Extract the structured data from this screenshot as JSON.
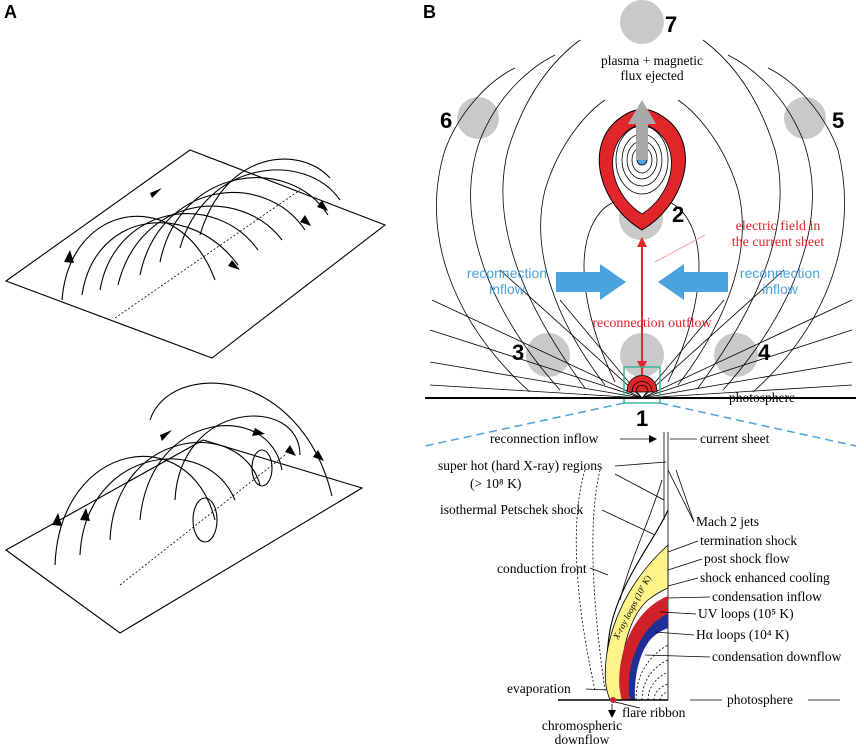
{
  "panels": {
    "a": "A",
    "b": "B"
  },
  "locations": [
    "1",
    "2",
    "3",
    "4",
    "5",
    "6",
    "7"
  ],
  "labels": {
    "plasma_line1": "plasma + magnetic",
    "plasma_line2": "flux ejected",
    "electric_line1": "electric field  in",
    "electric_line2": "the current sheet",
    "inflow_left_1": "reconnection",
    "inflow_left_2": "inflow",
    "inflow_right_1": "reconnection",
    "inflow_right_2": "inflow",
    "outflow": "reconnection outflow",
    "photosphere_top": "photosphere",
    "reconnection_inflow": "reconnection inflow",
    "current_sheet": "current sheet",
    "super_hot_1": "super hot (hard X-ray) regions",
    "super_hot_2": "(> 10⁸ K)",
    "petschek": "isothermal Petschek shock",
    "mach": "Mach 2 jets",
    "termination": "termination shock",
    "post_shock": "post shock flow",
    "conduction": "conduction front",
    "enhanced_cooling": "shock enhanced cooling",
    "condensation_inflow": "condensation inflow",
    "uv_loops": "UV loops (10⁵ K)",
    "ha_loops": "Hα loops (10⁴ K)",
    "condensation_downflow": "condensation downflow",
    "evaporation": "evaporation",
    "photosphere_bottom": "photosphere",
    "flare_ribbon": "flare ribbon",
    "chromo_1": "chromospheric",
    "chromo_2": "downflow",
    "xray_loops": "X-ray loops (10⁷ K)"
  },
  "colors": {
    "inflow": "#4aa3df",
    "electric": "#e0262b",
    "plasmoid_red": "#e0262b",
    "grey_region": "#c9c9c9",
    "xray_yellow": "#fff38a",
    "uv_red": "#d0202a",
    "ha_blue": "#1e2f96",
    "zoom_box": "#3db39a",
    "zoom_dash": "#4aa3df"
  }
}
